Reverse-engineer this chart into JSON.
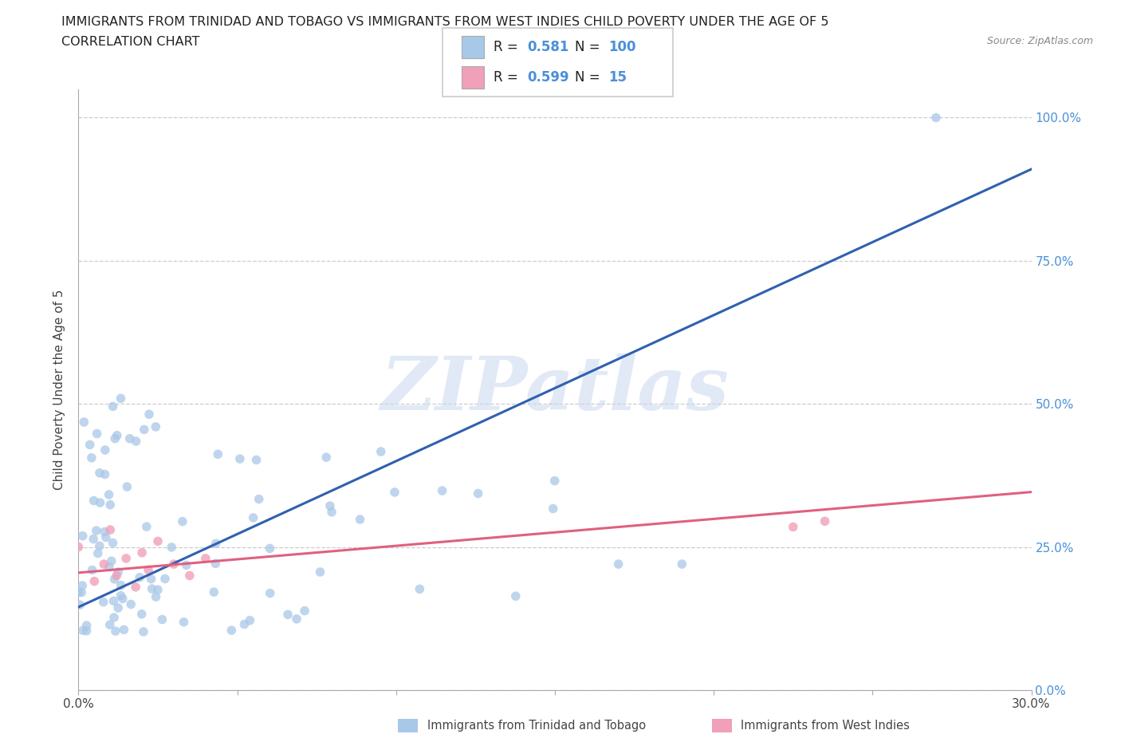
{
  "title_line1": "IMMIGRANTS FROM TRINIDAD AND TOBAGO VS IMMIGRANTS FROM WEST INDIES CHILD POVERTY UNDER THE AGE OF 5",
  "title_line2": "CORRELATION CHART",
  "source": "Source: ZipAtlas.com",
  "ylabel": "Child Poverty Under the Age of 5",
  "x_min": 0.0,
  "x_max": 0.3,
  "y_min": 0.0,
  "y_max": 1.05,
  "blue_color": "#A8C8E8",
  "pink_color": "#F0A0B8",
  "blue_line_color": "#3060B0",
  "pink_line_color": "#E06080",
  "watermark_text": "ZIPatlas",
  "ytick_labels": [
    "0.0%",
    "25.0%",
    "50.0%",
    "75.0%",
    "100.0%"
  ],
  "ytick_values": [
    0.0,
    0.25,
    0.5,
    0.75,
    1.0
  ],
  "xtick_labels": [
    "0.0%",
    "",
    "",
    "",
    "",
    "",
    "30.0%"
  ],
  "xtick_values": [
    0.0,
    0.05,
    0.1,
    0.15,
    0.2,
    0.25,
    0.3
  ],
  "legend_label_blue": "Immigrants from Trinidad and Tobago",
  "legend_label_pink": "Immigrants from West Indies",
  "blue_trend_intercept": 0.145,
  "blue_trend_slope": 2.55,
  "pink_trend_intercept": 0.205,
  "pink_trend_slope": 0.47,
  "blue_R": "0.581",
  "blue_N": "100",
  "pink_R": "0.599",
  "pink_N": "15"
}
